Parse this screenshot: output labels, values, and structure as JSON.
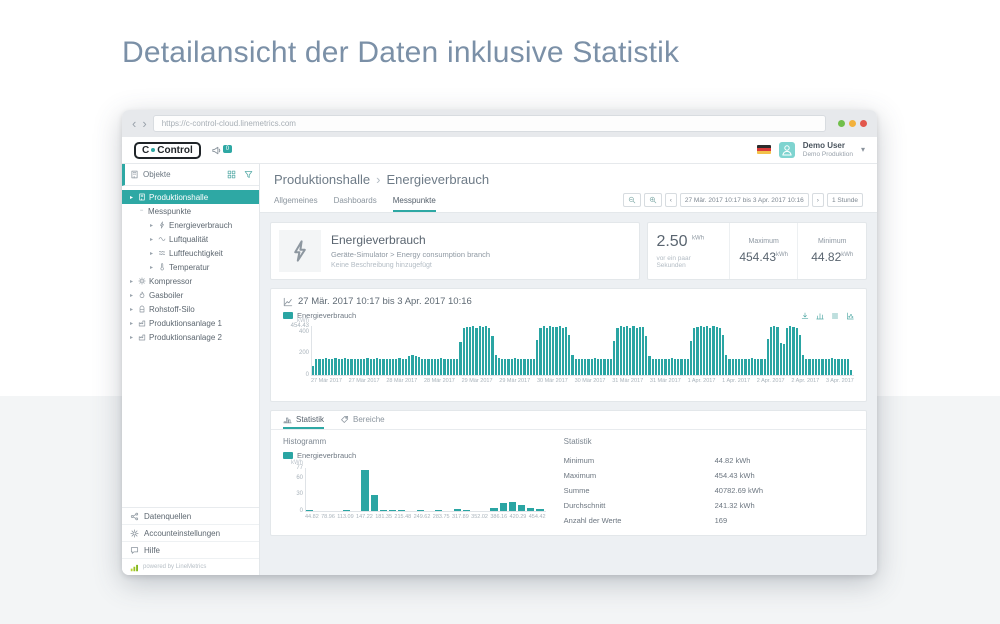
{
  "page": {
    "title": "Detailansicht der Daten inklusive Statistik"
  },
  "browser": {
    "url": "https://c-control-cloud.linemetrics.com",
    "back_icon": "‹",
    "forward_icon": "›",
    "traffic_lights": [
      "#71bf4b",
      "#f2b13c",
      "#e2574c"
    ]
  },
  "header": {
    "logo_left": "C",
    "logo_right": "Control",
    "notification_count": "0",
    "user": {
      "name": "Demo User",
      "org": "Demo Produktion"
    }
  },
  "sidebar": {
    "title": "Objekte",
    "tree": [
      {
        "label": "Produktionshalle",
        "level": 0,
        "icon": "building",
        "caret": "right",
        "selected": true
      },
      {
        "label": "Messpunkte",
        "level": 1,
        "icon": null,
        "caret": "minus",
        "selected": false
      },
      {
        "label": "Energieverbrauch",
        "level": 2,
        "icon": "bolt",
        "caret": "right",
        "selected": false
      },
      {
        "label": "Luftqualität",
        "level": 2,
        "icon": "wave",
        "caret": "right",
        "selected": false
      },
      {
        "label": "Luftfeuchtigkeit",
        "level": 2,
        "icon": "humidity",
        "caret": "right",
        "selected": false
      },
      {
        "label": "Temperatur",
        "level": 2,
        "icon": "thermometer",
        "caret": "right",
        "selected": false
      },
      {
        "label": "Kompressor",
        "level": 0,
        "icon": "gear",
        "caret": "right",
        "selected": false
      },
      {
        "label": "Gasboiler",
        "level": 0,
        "icon": "flame",
        "caret": "right",
        "selected": false
      },
      {
        "label": "Rohstoff-Silo",
        "level": 0,
        "icon": "silo",
        "caret": "right",
        "selected": false
      },
      {
        "label": "Produktionsanlage 1",
        "level": 0,
        "icon": "factory",
        "caret": "right",
        "selected": false
      },
      {
        "label": "Produktionsanlage 2",
        "level": 0,
        "icon": "factory",
        "caret": "right",
        "selected": false
      }
    ],
    "footer_items": [
      {
        "label": "Datenquellen",
        "icon": "nodes"
      },
      {
        "label": "Accounteinstellungen",
        "icon": "gear"
      },
      {
        "label": "Hilfe",
        "icon": "chat"
      }
    ],
    "powered_by": "powered by LineMetrics"
  },
  "main": {
    "breadcrumb": {
      "parent": "Produktionshalle",
      "separator": "›",
      "current": "Energieverbrauch"
    },
    "tabs": [
      {
        "label": "Allgemeines",
        "active": false
      },
      {
        "label": "Dashboards",
        "active": false
      },
      {
        "label": "Messpunkte",
        "active": true
      }
    ],
    "toolbar": {
      "date_range": "27 Mär. 2017 10:17 bis 3 Apr. 2017 10:16",
      "prev_icon": "‹",
      "next_icon": "›",
      "interval": "1 Stunde"
    },
    "info_card": {
      "title": "Energieverbrauch",
      "path": "Geräte-Simulator > Energy consumption branch",
      "description": "Keine Beschreibung hinzugefügt"
    },
    "value_card": {
      "current_value": "2.50",
      "current_unit": "kWh",
      "current_caption": "vor ein paar Sekunden",
      "maximum_label": "Maximum",
      "maximum_value": "454.43",
      "maximum_unit": "kWh",
      "minimum_label": "Minimum",
      "minimum_value": "44.82",
      "minimum_unit": "kWh"
    },
    "chart_card": {
      "title": "27 Mär. 2017 10:17 bis 3 Apr. 2017 10:16",
      "legend": "Energieverbrauch",
      "toolbar_icons": [
        "download",
        "barchart",
        "listtable",
        "scatter"
      ]
    },
    "stats_panel": {
      "tabs": [
        {
          "label": "Statistik",
          "icon": "histogram",
          "active": true
        },
        {
          "label": "Bereiche",
          "icon": "tag",
          "active": false
        }
      ],
      "histogram_title": "Histogramm",
      "histogram_legend": "Energieverbrauch",
      "stats_title": "Statistik",
      "stats_rows": [
        {
          "label": "Minimum",
          "value": "44.82 kWh"
        },
        {
          "label": "Maximum",
          "value": "454.43 kWh"
        },
        {
          "label": "Summe",
          "value": "40782.69 kWh"
        },
        {
          "label": "Durchschnitt",
          "value": "241.32 kWh"
        },
        {
          "label": "Anzahl der Werte",
          "value": "169"
        }
      ]
    }
  },
  "colors": {
    "accent": "#2ea8a4",
    "bar": "#2aa5a3"
  },
  "chart_data": [
    {
      "type": "bar",
      "title": "27 Mär. 2017 10:17 bis 3 Apr. 2017 10:16",
      "legend": "Energieverbrauch",
      "ylabel": "kWh",
      "ymax": 454.43,
      "y_ticks": [
        {
          "value": 454.43,
          "label": "454.43"
        },
        {
          "value": 400,
          "label": "400"
        },
        {
          "value": 200,
          "label": "200"
        },
        {
          "value": 0,
          "label": "0"
        }
      ],
      "x_labels": [
        "27 Mär 2017",
        "27 Mär 2017",
        "28 Mär 2017",
        "28 Mär 2017",
        "29 Mär 2017",
        "29 Mär 2017",
        "30 Mär 2017",
        "30 Mär 2017",
        "31 Mär 2017",
        "31 Mär 2017",
        "1 Apr. 2017",
        "1 Apr. 2017",
        "2 Apr. 2017",
        "2 Apr. 2017",
        "3 Apr. 2017"
      ],
      "values": [
        85,
        150,
        153,
        148,
        155,
        151,
        149,
        154,
        152,
        150,
        156,
        148,
        151,
        153,
        149,
        152,
        150,
        154,
        148,
        151,
        155,
        150,
        153,
        149,
        152,
        150,
        148,
        154,
        151,
        150,
        176,
        183,
        179,
        170,
        152,
        149,
        153,
        150,
        148,
        152,
        155,
        150,
        149,
        153,
        151,
        150,
        310,
        432,
        448,
        441,
        454.43,
        438,
        450,
        444,
        452,
        436,
        360,
        190,
        155,
        150,
        148,
        152,
        150,
        154,
        149,
        151,
        153,
        150,
        148,
        152,
        325,
        440,
        450,
        436,
        454,
        442,
        448,
        452,
        438,
        445,
        370,
        185,
        152,
        149,
        153,
        150,
        148,
        151,
        154,
        150,
        152,
        149,
        151,
        150,
        315,
        438,
        452,
        445,
        450,
        436,
        454,
        440,
        447,
        442,
        365,
        180,
        150,
        153,
        149,
        152,
        150,
        148,
        154,
        151,
        149,
        153,
        150,
        152,
        320,
        436,
        448,
        454,
        441,
        450,
        438,
        452,
        444,
        439,
        368,
        188,
        151,
        149,
        153,
        150,
        152,
        148,
        150,
        154,
        149,
        152,
        151,
        150,
        330,
        442,
        454,
        448,
        300,
        285,
        438,
        450,
        445,
        436,
        372,
        182,
        152,
        150,
        148,
        153,
        151,
        149,
        152,
        150,
        154,
        149,
        151,
        153,
        150,
        148,
        44.82
      ]
    },
    {
      "type": "bar",
      "title": "Histogramm",
      "legend": "Energieverbrauch",
      "ylabel": "kWh",
      "ymax": 77,
      "y_ticks": [
        {
          "value": 77,
          "label": "77"
        },
        {
          "value": 60,
          "label": "60"
        },
        {
          "value": 30,
          "label": "30"
        },
        {
          "value": 0,
          "label": "0"
        }
      ],
      "x_labels": [
        "44.82",
        "78.96",
        "113.09",
        "147.22",
        "181.35",
        "215.48",
        "249.62",
        "283.75",
        "317.89",
        "352.02",
        "386.16",
        "420.29",
        "454.42"
      ],
      "values": [
        1,
        0,
        0,
        0,
        1,
        0,
        74,
        28,
        2,
        1,
        1,
        0,
        1,
        0,
        2,
        0,
        3,
        1,
        0,
        0,
        6,
        14,
        16,
        10,
        5,
        3
      ]
    }
  ]
}
